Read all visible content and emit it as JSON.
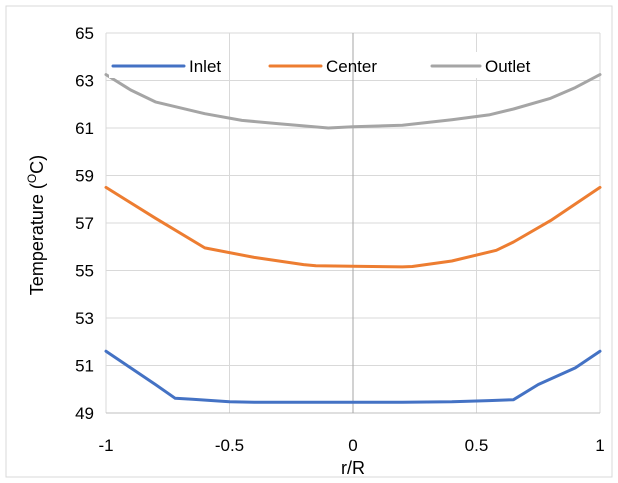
{
  "chart_data": {
    "type": "line",
    "title": "",
    "xlabel": "r/R",
    "ylabel_main": "Temperature (",
    "ylabel_sup": "O",
    "ylabel_end": "C)",
    "xlim": [
      -1,
      1
    ],
    "ylim": [
      49,
      65
    ],
    "x_ticks": [
      "-1",
      "-0.5",
      "0",
      "0.5",
      "1"
    ],
    "y_ticks": [
      "49",
      "51",
      "53",
      "55",
      "57",
      "59",
      "61",
      "63",
      "65"
    ],
    "grid": true,
    "legend_position": "top",
    "series": [
      {
        "name": "Inlet",
        "color": "#4472C4",
        "x": [
          -1,
          -0.9,
          -0.8,
          -0.72,
          -0.65,
          -0.5,
          -0.4,
          -0.2,
          0,
          0.2,
          0.4,
          0.55,
          0.65,
          0.75,
          0.9,
          1
        ],
        "y": [
          51.6,
          50.9,
          50.2,
          49.62,
          49.58,
          49.47,
          49.45,
          49.45,
          49.45,
          49.45,
          49.47,
          49.52,
          49.56,
          50.2,
          50.9,
          51.6
        ]
      },
      {
        "name": "Center",
        "color": "#ED7D31",
        "x": [
          -1,
          -0.8,
          -0.6,
          -0.4,
          -0.2,
          -0.15,
          0,
          0.2,
          0.24,
          0.4,
          0.58,
          0.65,
          0.8,
          1
        ],
        "y": [
          58.5,
          57.2,
          55.95,
          55.55,
          55.25,
          55.2,
          55.18,
          55.15,
          55.17,
          55.4,
          55.85,
          56.2,
          57.1,
          58.5
        ]
      },
      {
        "name": "Outlet",
        "color": "#A5A5A5",
        "x": [
          -1,
          -0.9,
          -0.8,
          -0.7,
          -0.6,
          -0.45,
          -0.3,
          -0.1,
          0,
          0.2,
          0.4,
          0.55,
          0.65,
          0.8,
          0.9,
          1
        ],
        "y": [
          63.25,
          62.6,
          62.1,
          61.85,
          61.6,
          61.32,
          61.18,
          61.0,
          61.05,
          61.12,
          61.35,
          61.55,
          61.8,
          62.25,
          62.7,
          63.25
        ]
      }
    ]
  }
}
